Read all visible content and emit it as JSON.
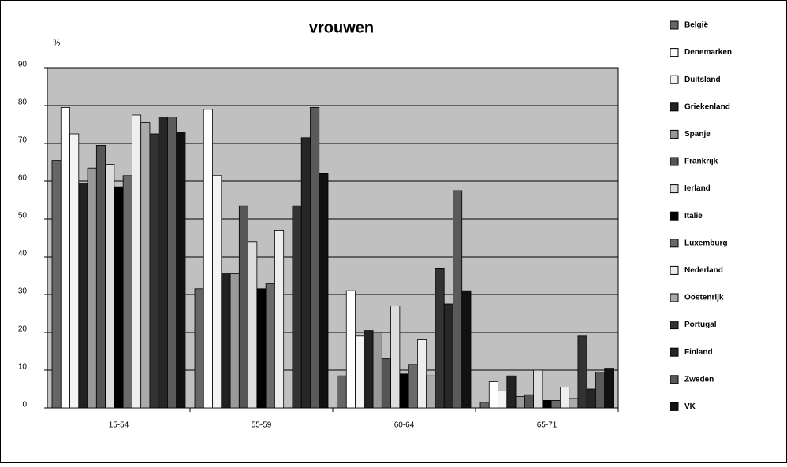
{
  "chart_data": {
    "type": "bar",
    "title": "vrouwen",
    "y_label": "%",
    "categories": [
      "15-54",
      "55-59",
      "60-64",
      "65-71"
    ],
    "ylim": [
      0,
      90
    ],
    "yticks": [
      0,
      10,
      20,
      30,
      40,
      50,
      60,
      70,
      80,
      90
    ],
    "grid": true,
    "legend": "right",
    "series": [
      {
        "name": "België",
        "color": "#666666",
        "values": [
          65.5,
          31.5,
          8.5,
          1.5
        ]
      },
      {
        "name": "Denemarken",
        "color": "#ffffff",
        "values": [
          79.5,
          79,
          31,
          7
        ]
      },
      {
        "name": "Duitsland",
        "color": "#f4f4f4",
        "values": [
          72.5,
          61.5,
          19,
          4.5
        ]
      },
      {
        "name": "Griekenland",
        "color": "#222222",
        "values": [
          59.5,
          35.5,
          20.5,
          8.5
        ]
      },
      {
        "name": "Spanje",
        "color": "#999999",
        "values": [
          63.5,
          35.5,
          20,
          3
        ]
      },
      {
        "name": "Frankrijk",
        "color": "#555555",
        "values": [
          69.5,
          53.5,
          13,
          3.5
        ]
      },
      {
        "name": "Ierland",
        "color": "#dddddd",
        "values": [
          64.5,
          44,
          27,
          10
        ]
      },
      {
        "name": "Italië",
        "color": "#000000",
        "values": [
          58.5,
          31.5,
          9,
          2
        ]
      },
      {
        "name": "Luxemburg",
        "color": "#6a6a6a",
        "values": [
          61.5,
          33,
          11.5,
          2
        ]
      },
      {
        "name": "Nederland",
        "color": "#eeeeee",
        "values": [
          77.5,
          47,
          18,
          5.5
        ]
      },
      {
        "name": "Oostenrijk",
        "color": "#aaaaaa",
        "values": [
          75.5,
          null,
          8.5,
          2.5
        ]
      },
      {
        "name": "Portugal",
        "color": "#333333",
        "values": [
          72.5,
          53.5,
          37,
          19
        ]
      },
      {
        "name": "Finland",
        "color": "#262626",
        "values": [
          77,
          71.5,
          27.5,
          5
        ]
      },
      {
        "name": "Zweden",
        "color": "#5a5a5a",
        "values": [
          77,
          79.5,
          57.5,
          9.5
        ]
      },
      {
        "name": "VK",
        "color": "#111111",
        "values": [
          73,
          62,
          31,
          10.5
        ]
      }
    ]
  }
}
